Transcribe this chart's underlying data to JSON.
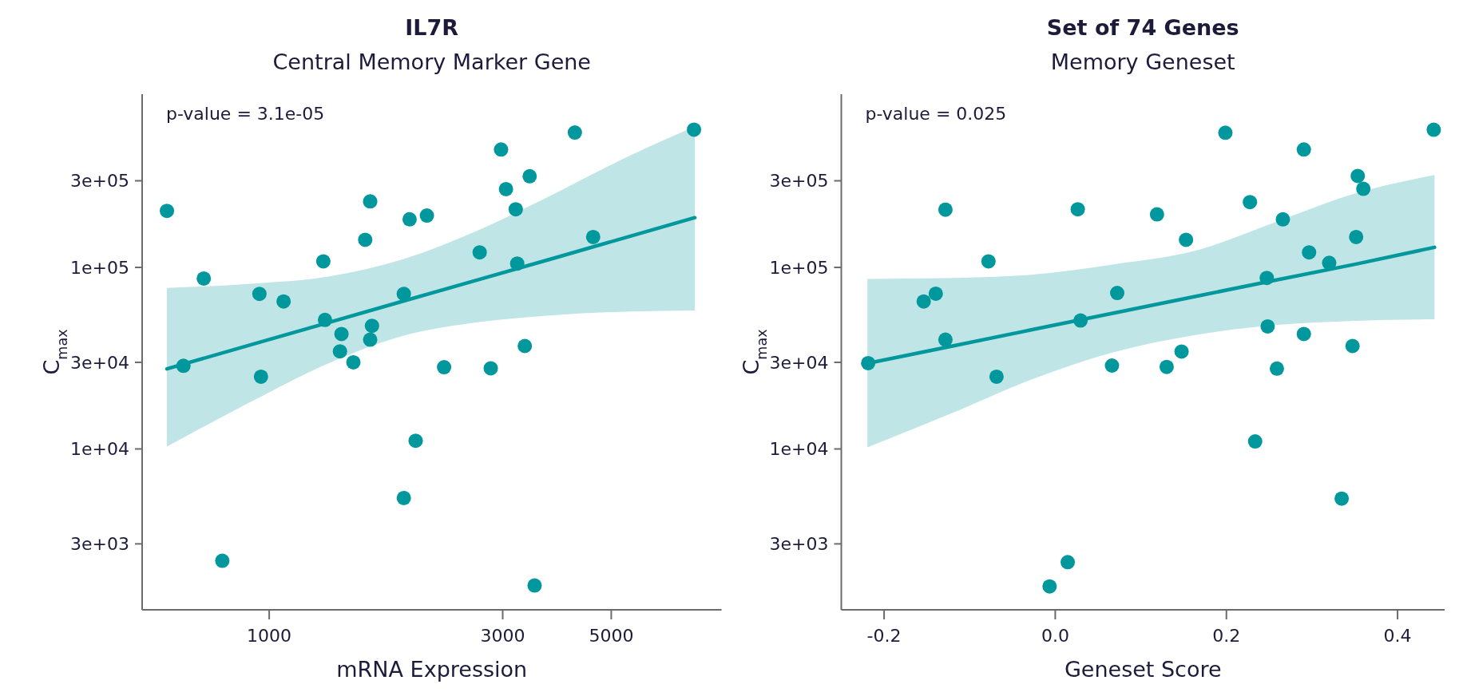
{
  "chart_data": [
    {
      "type": "scatter",
      "title": "IL7R",
      "subtitle": "Central Memory Marker Gene",
      "xlabel": "mRNA Expression",
      "ylabel": "C$_{max}$",
      "annotations": [
        "p-value = 3.1e-05"
      ],
      "log": "xy",
      "marker": "circle",
      "xlim": [
        550,
        8400
      ],
      "ylim": [
        1300,
        900000
      ],
      "xticks": [
        1000,
        3000,
        5000
      ],
      "yticks": [
        {
          "value": 3000,
          "label": "3e+03"
        },
        {
          "value": 10000,
          "label": "1e+04"
        },
        {
          "value": 30000,
          "label": "3e+04"
        },
        {
          "value": 100000,
          "label": "1e+05"
        },
        {
          "value": 300000,
          "label": "3e+05"
        }
      ],
      "series": [
        {
          "type": "line",
          "marker": "none",
          "color": "#00979d",
          "x": [
            618,
            918,
            1313,
            1878,
            2686,
            3840,
            5490,
            7410
          ],
          "values": [
            27600,
            37500,
            49400,
            65200,
            85900,
            113000,
            149000,
            188000
          ],
          "lower": [
            10300,
            18200,
            29400,
            42000,
            50000,
            54700,
            57200,
            57900
          ],
          "upper": [
            77100,
            81300,
            88800,
            111000,
            161000,
            256000,
            416000,
            597000
          ]
        },
        {
          "color": "#00979d",
          "x": [
            618,
            668,
            735,
            802,
            955,
            962,
            1070,
            1290,
            1300,
            1405,
            1395,
            1486,
            1571,
            1608,
            1622,
            1608,
            1884,
            1936,
            1884,
            1992,
            2100,
            2277,
            2692,
            2836,
            2977,
            3047,
            3190,
            3212,
            3329,
            3406,
            3486,
            4213,
            4592,
            7380
          ],
          "values": [
            205000,
            28700,
            86900,
            2420,
            71500,
            25000,
            64900,
            108000,
            51400,
            43000,
            34500,
            30000,
            142000,
            231000,
            47700,
            40000,
            71500,
            184000,
            5370,
            11100,
            193000,
            28200,
            121000,
            27800,
            446000,
            270000,
            209000,
            105000,
            36900,
            318000,
            1770,
            553000,
            147000,
            574000
          ]
        }
      ]
    },
    {
      "type": "scatter",
      "title": "Set of 74 Genes",
      "subtitle": "Memory Geneset",
      "xlabel": "Geneset Score",
      "ylabel": "C$_{max}$",
      "annotations": [
        "p-value = 0.025"
      ],
      "log": "y",
      "marker": "circle",
      "xlim": [
        -0.25,
        0.455
      ],
      "ylim": [
        1300,
        900000
      ],
      "xticks": [
        -0.2,
        {
          "value": 0,
          "label": "0.0"
        },
        0.2,
        0.4
      ],
      "yticks": [
        {
          "value": 3000,
          "label": "3e+03"
        },
        {
          "value": 10000,
          "label": "1e+04"
        },
        {
          "value": 30000,
          "label": "3e+04"
        },
        {
          "value": 100000,
          "label": "1e+05"
        },
        {
          "value": 300000,
          "label": "3e+05"
        }
      ],
      "series": [
        {
          "type": "line",
          "marker": "none",
          "color": "#00979d",
          "x": [
            -0.2195,
            -0.1199,
            -0.0259,
            0.0682,
            0.1622,
            0.2562,
            0.3502,
            0.4432
          ],
          "values": [
            29600,
            36900,
            45500,
            56000,
            69000,
            84900,
            104000,
            129000
          ],
          "lower": [
            10200,
            15800,
            24300,
            34100,
            42300,
            48100,
            50800,
            51800
          ],
          "upper": [
            86400,
            87500,
            91400,
            104000,
            123000,
            177000,
            255000,
            323000
          ]
        },
        {
          "color": "#00979d",
          "x": [
            -0.2186,
            -0.1537,
            -0.1396,
            -0.1283,
            -0.1283,
            -0.078,
            -0.0686,
            -0.0066,
            0.0146,
            0.0263,
            0.0296,
            0.0663,
            0.0724,
            0.1189,
            0.1302,
            0.1476,
            0.1528,
            0.1988,
            0.2275,
            0.2336,
            0.2472,
            0.2482,
            0.259,
            0.266,
            0.2905,
            0.2905,
            0.2966,
            0.3201,
            0.3347,
            0.3474,
            0.3516,
            0.3535,
            0.36,
            0.4423
          ],
          "values": [
            29700,
            64900,
            71700,
            208000,
            40000,
            108000,
            25000,
            1750,
            2380,
            209000,
            51000,
            28800,
            72300,
            196000,
            28300,
            34400,
            142000,
            552000,
            229000,
            11000,
            87500,
            47300,
            27700,
            184000,
            446000,
            43000,
            121000,
            106000,
            5330,
            36900,
            147000,
            319000,
            271000,
            573000
          ]
        }
      ]
    }
  ]
}
